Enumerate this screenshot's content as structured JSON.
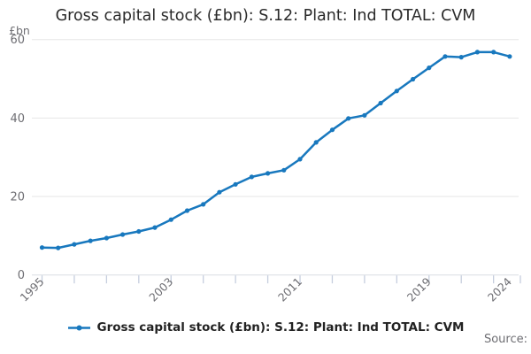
{
  "chart": {
    "title": "Gross capital stock (£bn): S.12: Plant: Ind TOTAL: CVM",
    "y_unit": "£bn",
    "legend_label": "Gross capital stock (£bn): S.12: Plant: Ind TOTAL: CVM",
    "source_label": "Source:"
  },
  "chart_data": {
    "type": "line",
    "title": "Gross capital stock (£bn): S.12: Plant: Ind TOTAL: CVM",
    "xlabel": "",
    "ylabel": "£bn",
    "x": [
      1995,
      1996,
      1997,
      1998,
      1999,
      2000,
      2001,
      2002,
      2003,
      2004,
      2005,
      2006,
      2007,
      2008,
      2009,
      2010,
      2011,
      2012,
      2013,
      2014,
      2015,
      2016,
      2017,
      2018,
      2019,
      2020,
      2021,
      2022,
      2023,
      2024
    ],
    "series": [
      {
        "name": "Gross capital stock (£bn): S.12: Plant: Ind TOTAL: CVM",
        "values": [
          7.0,
          6.9,
          7.8,
          8.7,
          9.4,
          10.3,
          11.1,
          12.1,
          14.1,
          16.4,
          18.0,
          21.1,
          23.1,
          25.0,
          25.9,
          26.7,
          29.5,
          33.8,
          37.0,
          39.9,
          40.7,
          43.8,
          46.9,
          49.9,
          52.8,
          55.7,
          55.5,
          56.8,
          56.8,
          55.7
        ]
      }
    ],
    "ylim": [
      0,
      60
    ],
    "y_ticks": [
      0,
      20,
      40,
      60
    ],
    "x_tick_interval_years": 2,
    "x_labeled_ticks": [
      1995,
      2003,
      2011,
      2019,
      2024
    ],
    "grid": "horizontal",
    "legend_position": "bottom",
    "marker": "dot",
    "colors": {
      "line": "#1878be",
      "grid": "#e6e6e6",
      "axis": "#d9dde3",
      "tick": "#c6cede",
      "tick_label": "#6e6e73",
      "title_text": "#2a2a2a",
      "legend_text": "#222222",
      "source_text": "#6e6e73"
    }
  }
}
